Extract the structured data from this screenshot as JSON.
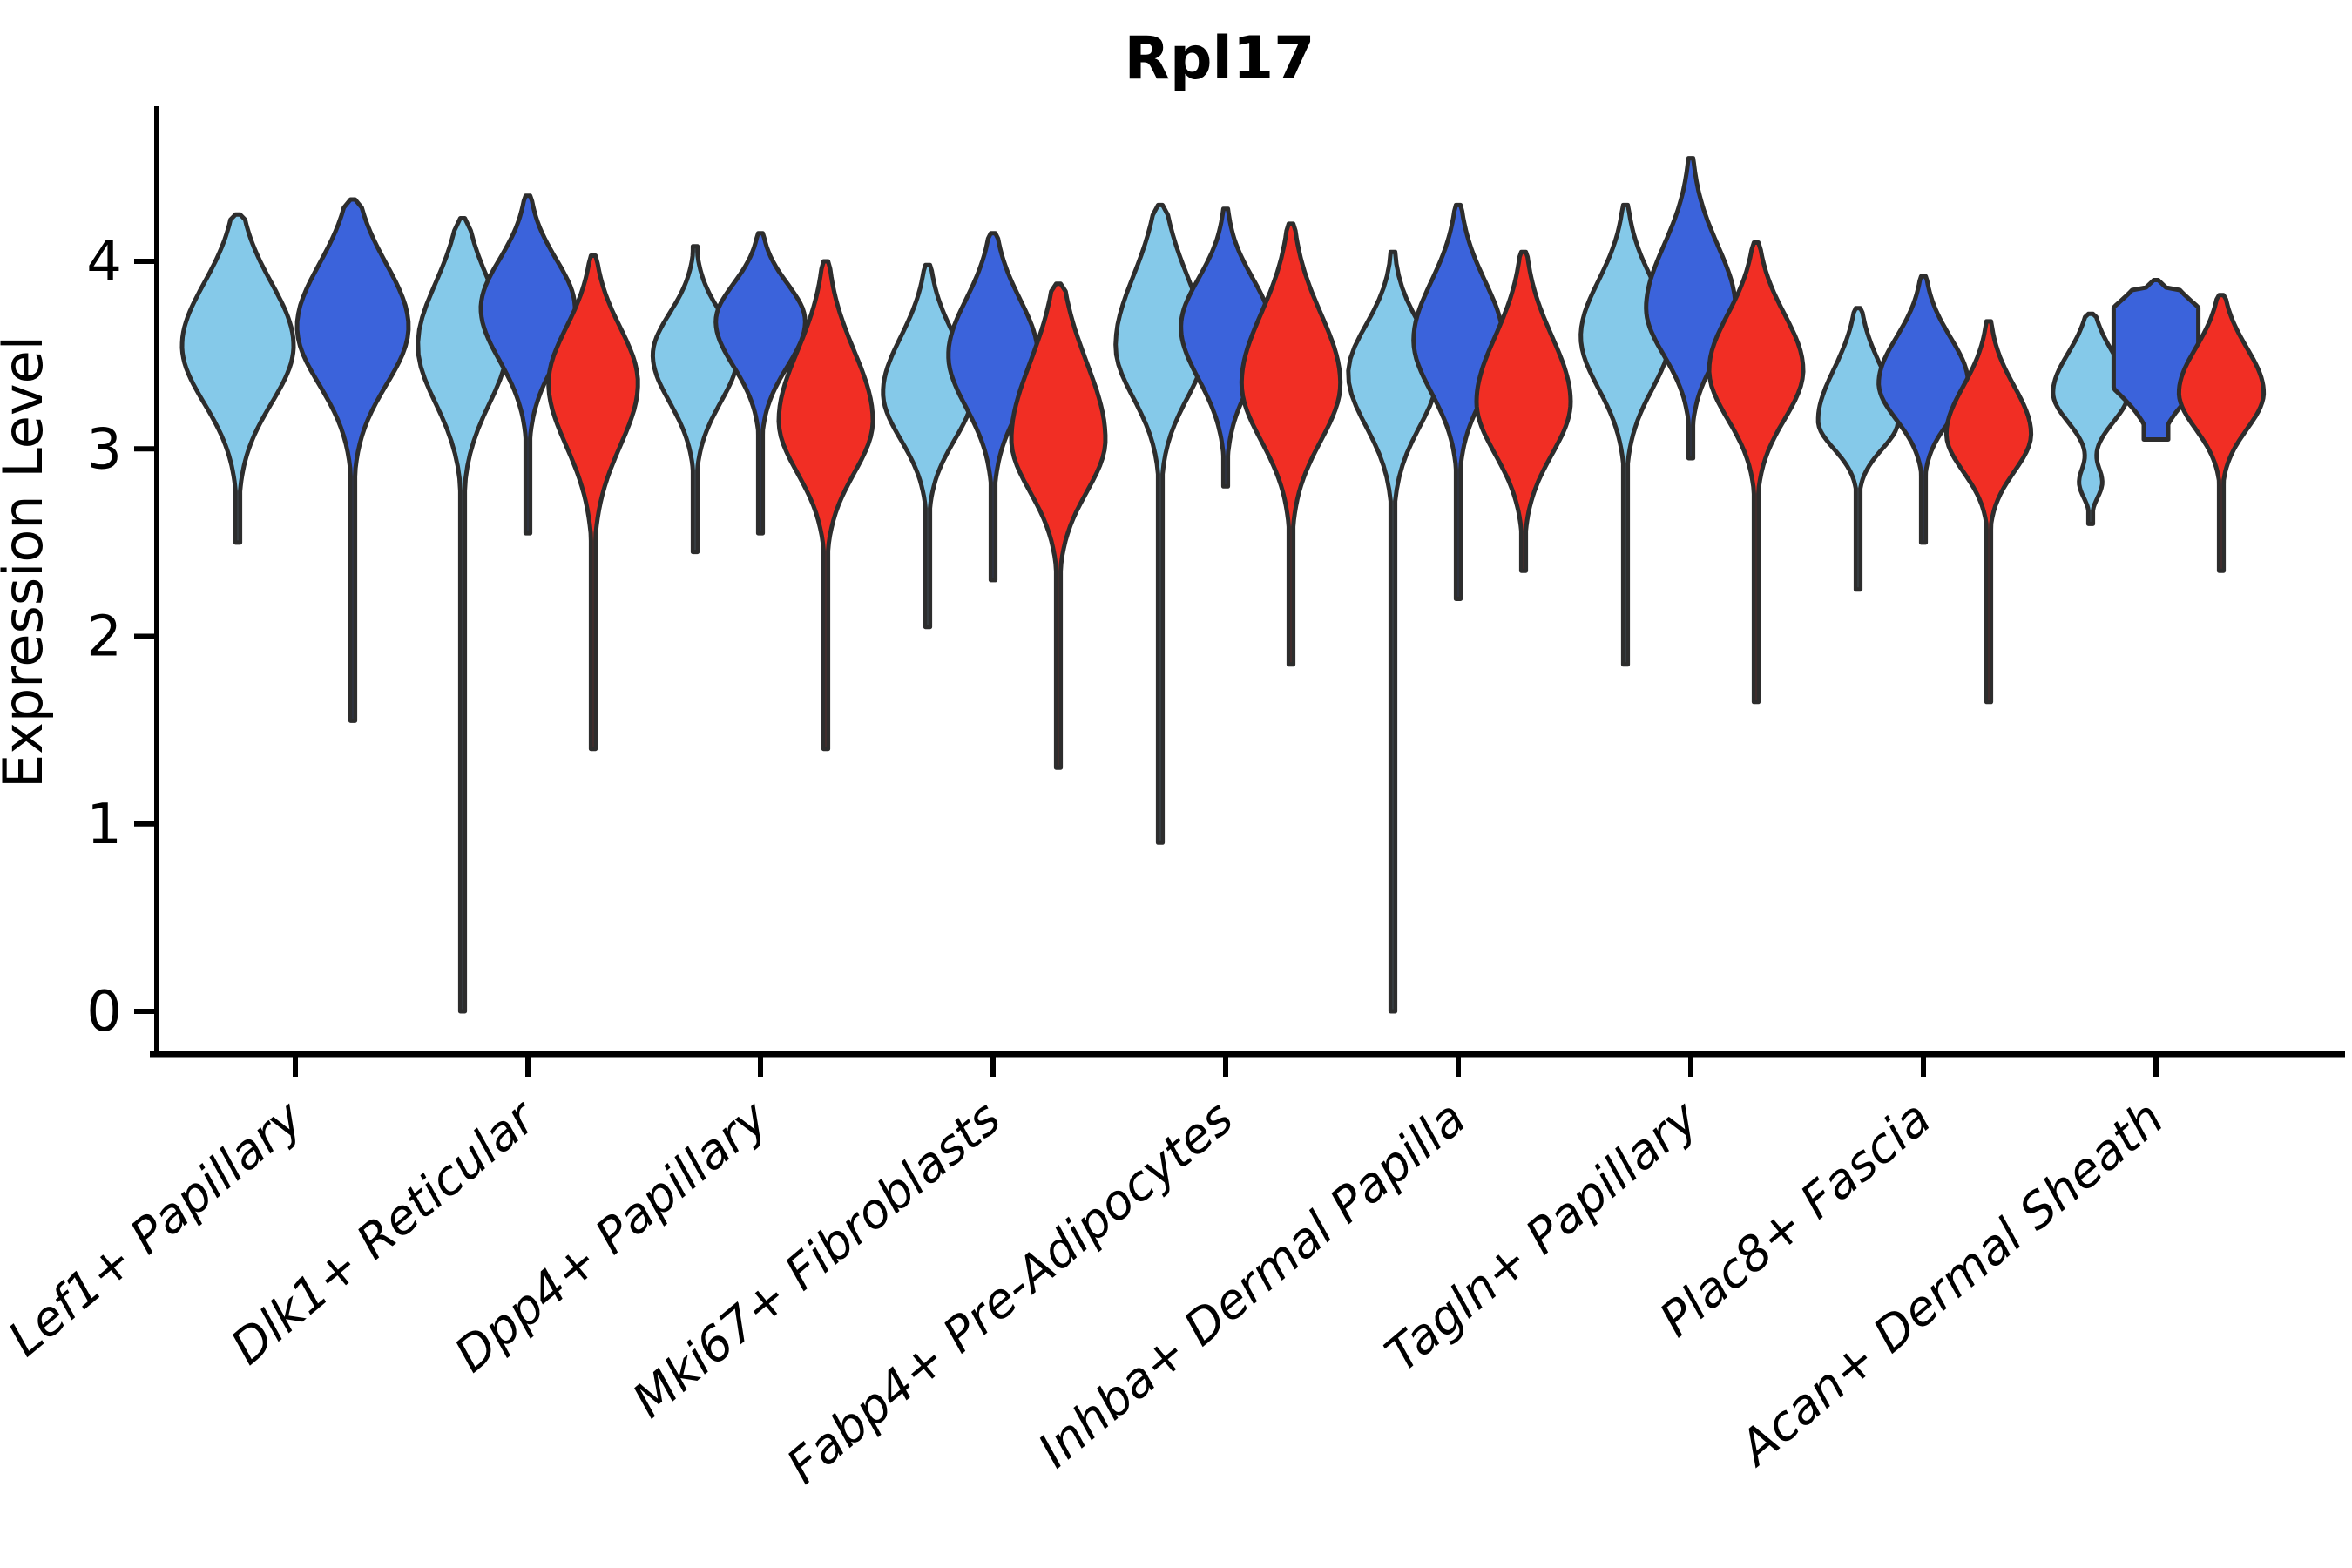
{
  "chart_data": {
    "type": "violin",
    "title": "Rpl17",
    "ylabel": "Expression Level",
    "xlabel": "",
    "yticks": [
      0,
      1,
      2,
      3,
      4
    ],
    "ylim": [
      -0.2,
      4.83
    ],
    "grid": false,
    "legend": "none",
    "palette": {
      "hue_colors": [
        "#85C9E9",
        "#3B63DB",
        "#F12E24"
      ],
      "hue_names": [
        "light-blue",
        "royal-blue",
        "red"
      ],
      "outline": "#2D2D2D",
      "axis_color": "#000000"
    },
    "categories": [
      "Lef1+ Papillary",
      "Dlk1+ Reticular",
      "Dpp4+ Papillary",
      "Mki67+ Fibroblasts",
      "Fabp4+ Pre-Adipocytes",
      "Inhba+ Dermal Papilla",
      "Tagln+ Papillary",
      "Plac8+ Fascia",
      "Acan+ Dermal Sheath"
    ],
    "groups": [
      {
        "category": "Lef1+ Papillary",
        "violins": [
          {
            "hue": 0,
            "max": 4.25,
            "body_top": 4.0,
            "peak": 3.55,
            "body_bottom": 3.0,
            "min": 2.5,
            "width": 1.0
          },
          {
            "hue": 1,
            "max": 4.33,
            "body_top": 4.1,
            "peak": 3.65,
            "body_bottom": 3.1,
            "min": 1.55,
            "width": 1.0
          }
        ]
      },
      {
        "category": "Dlk1+ Reticular",
        "violins": [
          {
            "hue": 0,
            "max": 4.23,
            "body_top": 4.0,
            "peak": 3.55,
            "body_bottom": 3.0,
            "min": 0.0,
            "width": 0.95
          },
          {
            "hue": 1,
            "max": 4.35,
            "body_top": 4.1,
            "peak": 3.75,
            "body_bottom": 3.25,
            "min": 2.55,
            "width": 1.0
          },
          {
            "hue": 2,
            "max": 4.03,
            "body_top": 3.75,
            "peak": 3.35,
            "body_bottom": 2.75,
            "min": 1.4,
            "width": 0.95
          }
        ]
      },
      {
        "category": "Dpp4+ Papillary",
        "violins": [
          {
            "hue": 0,
            "max": 4.08,
            "body_top": 3.8,
            "peak": 3.5,
            "body_bottom": 3.05,
            "min": 2.45,
            "width": 0.9
          },
          {
            "hue": 1,
            "max": 4.15,
            "body_top": 3.95,
            "peak": 3.68,
            "body_bottom": 3.25,
            "min": 2.55,
            "width": 0.95
          },
          {
            "hue": 2,
            "max": 4.0,
            "body_top": 3.65,
            "peak": 3.15,
            "body_bottom": 2.65,
            "min": 1.4,
            "width": 1.0
          }
        ]
      },
      {
        "category": "Mki67+ Fibroblasts",
        "violins": [
          {
            "hue": 0,
            "max": 3.98,
            "body_top": 3.7,
            "peak": 3.3,
            "body_bottom": 2.85,
            "min": 2.05,
            "width": 0.95
          },
          {
            "hue": 1,
            "max": 4.15,
            "body_top": 3.9,
            "peak": 3.5,
            "body_bottom": 3.0,
            "min": 2.3,
            "width": 0.95
          },
          {
            "hue": 2,
            "max": 3.88,
            "body_top": 3.6,
            "peak": 3.05,
            "body_bottom": 2.55,
            "min": 1.3,
            "width": 1.0
          }
        ]
      },
      {
        "category": "Fabp4+ Pre-Adipocytes",
        "violins": [
          {
            "hue": 0,
            "max": 4.3,
            "body_top": 4.05,
            "peak": 3.55,
            "body_bottom": 3.05,
            "min": 0.9,
            "width": 0.95
          },
          {
            "hue": 1,
            "max": 4.28,
            "body_top": 4.0,
            "peak": 3.65,
            "body_bottom": 3.15,
            "min": 2.8,
            "width": 0.95
          },
          {
            "hue": 2,
            "max": 4.2,
            "body_top": 3.85,
            "peak": 3.35,
            "body_bottom": 2.8,
            "min": 1.85,
            "width": 1.05
          }
        ]
      },
      {
        "category": "Inhba+ Dermal Papilla",
        "violins": [
          {
            "hue": 0,
            "max": 4.05,
            "body_top": 3.75,
            "peak": 3.4,
            "body_bottom": 2.9,
            "min": 0.0,
            "width": 0.95
          },
          {
            "hue": 1,
            "max": 4.3,
            "body_top": 4.0,
            "peak": 3.58,
            "body_bottom": 3.08,
            "min": 2.2,
            "width": 0.95
          },
          {
            "hue": 2,
            "max": 4.05,
            "body_top": 3.72,
            "peak": 3.25,
            "body_bottom": 2.75,
            "min": 2.35,
            "width": 1.0
          }
        ]
      },
      {
        "category": "Tagln+ Papillary",
        "violins": [
          {
            "hue": 0,
            "max": 4.3,
            "body_top": 4.0,
            "peak": 3.6,
            "body_bottom": 3.1,
            "min": 1.85,
            "width": 0.95
          },
          {
            "hue": 1,
            "max": 4.55,
            "body_top": 4.2,
            "peak": 3.75,
            "body_bottom": 3.3,
            "min": 2.95,
            "width": 0.95
          },
          {
            "hue": 2,
            "max": 4.1,
            "body_top": 3.82,
            "peak": 3.42,
            "body_bottom": 2.95,
            "min": 1.65,
            "width": 1.0
          }
        ]
      },
      {
        "category": "Plac8+ Fascia",
        "violins": [
          {
            "hue": 0,
            "max": 3.75,
            "body_top": 3.52,
            "peak": 3.15,
            "body_bottom": 2.88,
            "min": 2.25,
            "width": 0.85
          },
          {
            "hue": 1,
            "max": 3.92,
            "body_top": 3.68,
            "peak": 3.35,
            "body_bottom": 3.0,
            "min": 2.5,
            "width": 0.95
          },
          {
            "hue": 2,
            "max": 3.68,
            "body_top": 3.42,
            "peak": 3.08,
            "body_bottom": 2.72,
            "min": 1.65,
            "width": 0.9
          }
        ]
      },
      {
        "category": "Acan+ Dermal Sheath",
        "violins": [
          {
            "hue": 0,
            "max": 3.72,
            "body_top": 3.58,
            "peak": 3.3,
            "body_bottom": 3.02,
            "min": 2.6,
            "width": 0.8,
            "blob": {
              "at": 2.82,
              "size": 0.3
            }
          },
          {
            "hue": 1,
            "max": 3.9,
            "body_top": 3.82,
            "peak": 3.55,
            "body_bottom": 3.15,
            "min": 3.05,
            "width": 0.9,
            "flat": true
          },
          {
            "hue": 2,
            "max": 3.82,
            "body_top": 3.62,
            "peak": 3.3,
            "body_bottom": 2.95,
            "min": 2.35,
            "width": 0.9
          }
        ]
      }
    ]
  }
}
